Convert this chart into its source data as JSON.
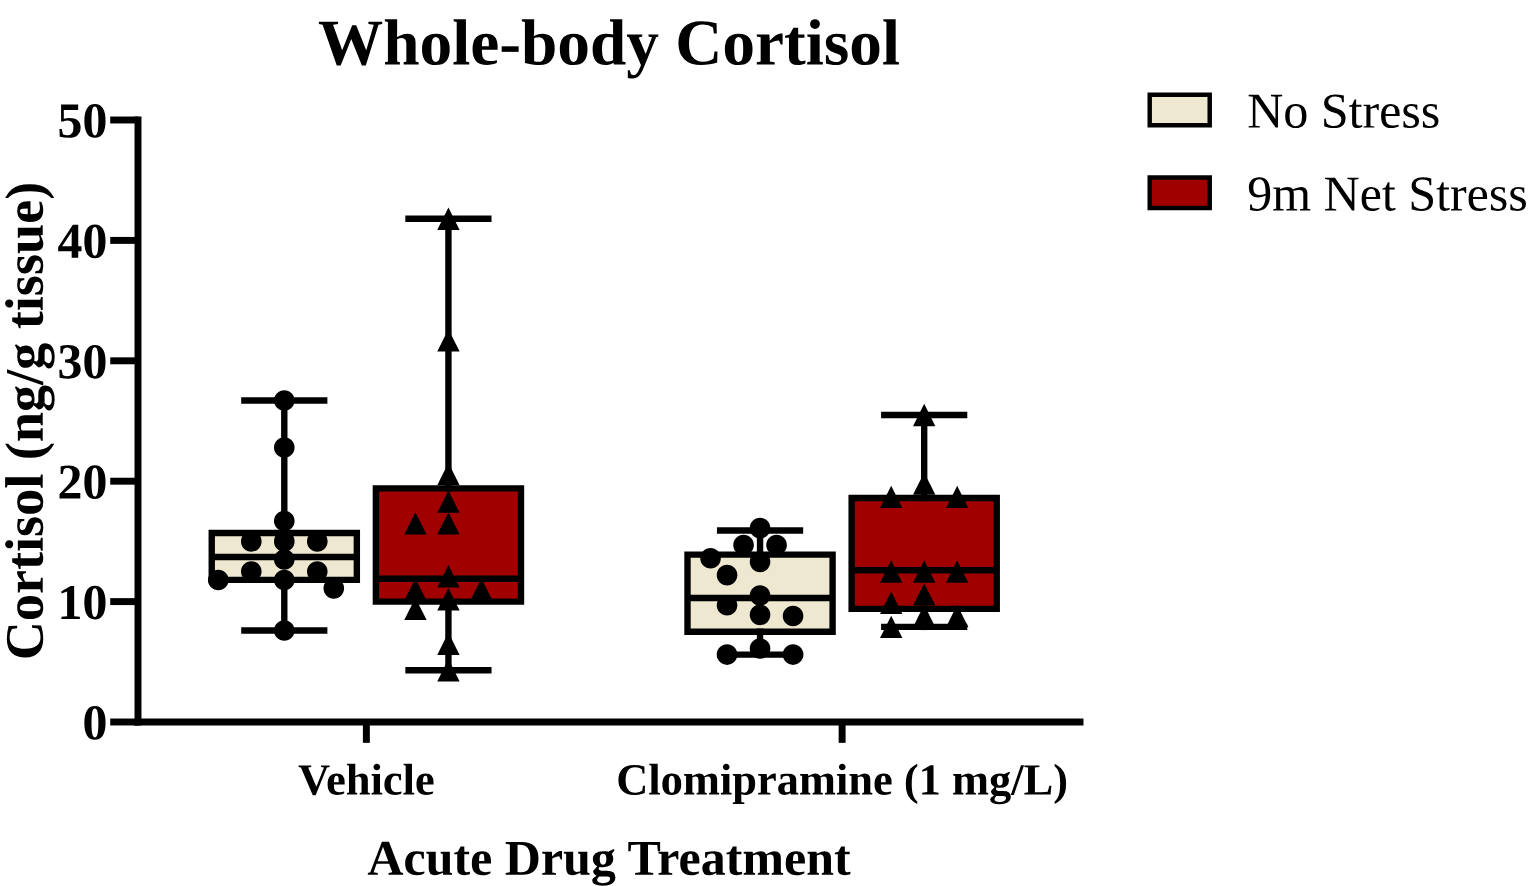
{
  "chart_data": {
    "type": "box",
    "title": "Whole-body Cortisol",
    "xlabel": "Acute Drug Treatment",
    "ylabel": "Cortisol (ng/g tissue)",
    "categories": [
      "Vehicle",
      "Clomipramine (1 mg/L)"
    ],
    "ylim": [
      0,
      50
    ],
    "yticks": [
      0,
      10,
      20,
      30,
      40,
      50
    ],
    "legend": "top right",
    "series": [
      {
        "name": "No Stress",
        "color": "#efe8d0",
        "boxes": [
          {
            "low": 7.6,
            "q1": 11.8,
            "median": 13.7,
            "q3": 15.7,
            "high": 26.7
          },
          {
            "low": 5.6,
            "q1": 7.5,
            "median": 10.3,
            "q3": 13.9,
            "high": 15.9
          }
        ]
      },
      {
        "name": "9m Net Stress",
        "color": "#a00000",
        "boxes": [
          {
            "low": 4.3,
            "q1": 10.0,
            "median": 11.9,
            "q3": 19.4,
            "high": 41.8
          },
          {
            "low": 7.9,
            "q1": 9.4,
            "median": 12.6,
            "q3": 18.6,
            "high": 25.5
          }
        ]
      },
      {
        "type": "scatter",
        "color": "#000000",
        "marker": "circle",
        "x": [
          "Vehicle",
          "Vehicle",
          "Vehicle",
          "Vehicle",
          "Vehicle",
          "Vehicle",
          "Vehicle",
          "Vehicle",
          "Vehicle",
          "Vehicle",
          "Vehicle",
          "Vehicle",
          "Vehicle",
          "Clomipramine (1 mg/L)",
          "Clomipramine (1 mg/L)",
          "Clomipramine (1 mg/L)",
          "Clomipramine (1 mg/L)",
          "Clomipramine (1 mg/L)",
          "Clomipramine (1 mg/L)",
          "Clomipramine (1 mg/L)",
          "Clomipramine (1 mg/L)",
          "Clomipramine (1 mg/L)",
          "Clomipramine (1 mg/L)",
          "Clomipramine (1 mg/L)",
          "Clomipramine (1 mg/L)",
          "Clomipramine (1 mg/L)"
        ],
        "values": [
          26.7,
          22.8,
          16.7,
          15.0,
          15.0,
          15.0,
          13.5,
          12.5,
          12.5,
          11.8,
          11.8,
          11.1,
          7.6,
          16.1,
          14.7,
          14.7,
          13.6,
          13.3,
          12.2,
          10.5,
          9.7,
          8.9,
          8.8,
          6.1,
          5.6,
          5.6
        ]
      },
      {
        "type": "scatter",
        "color": "#000000",
        "marker": "triangle",
        "x": [
          "Vehicle",
          "Vehicle",
          "Vehicle",
          "Vehicle",
          "Vehicle",
          "Vehicle",
          "Vehicle",
          "Vehicle",
          "Vehicle",
          "Vehicle",
          "Vehicle",
          "Vehicle",
          "Vehicle",
          "Clomipramine (1 mg/L)",
          "Clomipramine (1 mg/L)",
          "Clomipramine (1 mg/L)",
          "Clomipramine (1 mg/L)",
          "Clomipramine (1 mg/L)",
          "Clomipramine (1 mg/L)",
          "Clomipramine (1 mg/L)",
          "Clomipramine (1 mg/L)",
          "Clomipramine (1 mg/L)",
          "Clomipramine (1 mg/L)",
          "Clomipramine (1 mg/L)",
          "Clomipramine (1 mg/L)"
        ],
        "values": [
          41.8,
          31.7,
          20.6,
          18.3,
          16.5,
          16.5,
          12.1,
          11.0,
          11.0,
          10.2,
          9.4,
          6.5,
          4.3,
          25.5,
          19.8,
          18.7,
          18.7,
          12.5,
          12.5,
          12.5,
          10.6,
          9.9,
          8.8,
          8.8,
          7.9
        ]
      }
    ]
  }
}
